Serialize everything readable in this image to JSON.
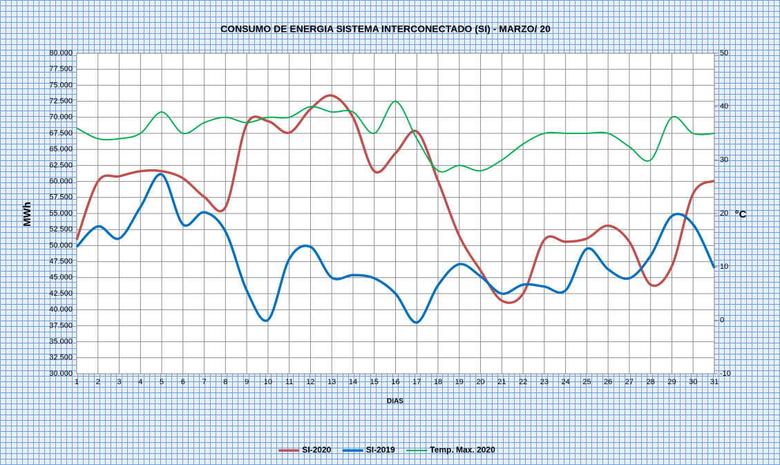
{
  "chart_data": {
    "type": "line",
    "title": "CONSUMO DE ENERGIA SISTEMA INTERCONECTADO (SI) -  MARZO/ 20",
    "x_label": "DIAS",
    "y_label": "MWh",
    "y2_label": "°C",
    "categories": [
      "1",
      "2",
      "3",
      "4",
      "5",
      "6",
      "7",
      "8",
      "9",
      "10",
      "11",
      "12",
      "13",
      "14",
      "15",
      "16",
      "17",
      "18",
      "19",
      "20",
      "21",
      "22",
      "23",
      "24",
      "25",
      "26",
      "27",
      "28",
      "29",
      "30",
      "31"
    ],
    "ylim": [
      30000,
      80000
    ],
    "yticks": [
      {
        "value": 30000,
        "label": "30.000"
      },
      {
        "value": 32500,
        "label": "32.500"
      },
      {
        "value": 35000,
        "label": "35.000"
      },
      {
        "value": 37500,
        "label": "37.500"
      },
      {
        "value": 40000,
        "label": "40.000"
      },
      {
        "value": 42500,
        "label": "42.500"
      },
      {
        "value": 45000,
        "label": "45.000"
      },
      {
        "value": 47500,
        "label": "47.500"
      },
      {
        "value": 50000,
        "label": "50.000"
      },
      {
        "value": 52500,
        "label": "52.500"
      },
      {
        "value": 55000,
        "label": "55.000"
      },
      {
        "value": 57500,
        "label": "57.500"
      },
      {
        "value": 60000,
        "label": "60.000"
      },
      {
        "value": 62500,
        "label": "62.500"
      },
      {
        "value": 65000,
        "label": "65.000"
      },
      {
        "value": 67500,
        "label": "67.500"
      },
      {
        "value": 70000,
        "label": "70.000"
      },
      {
        "value": 72500,
        "label": "72.500"
      },
      {
        "value": 75000,
        "label": "75.000"
      },
      {
        "value": 77500,
        "label": "77.500"
      },
      {
        "value": 80000,
        "label": "80.000"
      }
    ],
    "y2lim": [
      -10,
      50
    ],
    "y2ticks": [
      -10,
      0,
      10,
      20,
      30,
      40,
      50
    ],
    "grid": true,
    "legend": "bottom",
    "series": [
      {
        "name": "SI-2020",
        "color": "#c0504d",
        "values": [
          50900,
          60000,
          60800,
          61600,
          61600,
          60500,
          57600,
          56000,
          68900,
          69400,
          67600,
          71300,
          73400,
          70000,
          61600,
          64400,
          67800,
          60100,
          51500,
          46100,
          41400,
          42500,
          50900,
          50600,
          51100,
          53100,
          50600,
          43900,
          46800,
          58100,
          60100
        ]
      },
      {
        "name": "SI-2019",
        "color": "#0070c0",
        "values": [
          49800,
          53000,
          51100,
          56000,
          61100,
          53300,
          55200,
          52200,
          43000,
          38400,
          47900,
          49800,
          45000,
          45400,
          44900,
          42500,
          38000,
          43800,
          47100,
          45200,
          42500,
          43900,
          43600,
          43000,
          49500,
          46300,
          44900,
          48400,
          54600,
          53300,
          46500
        ]
      },
      {
        "name": "Temp. Max. 2020",
        "color": "#00b050",
        "axis": "y2",
        "values": [
          36,
          34,
          34,
          35,
          39,
          35,
          37,
          38,
          37,
          38,
          38,
          40,
          39,
          39,
          35,
          41,
          34,
          28,
          29,
          28,
          30,
          33,
          35,
          35,
          35,
          35,
          32.5,
          30,
          38,
          35,
          35
        ]
      }
    ]
  }
}
